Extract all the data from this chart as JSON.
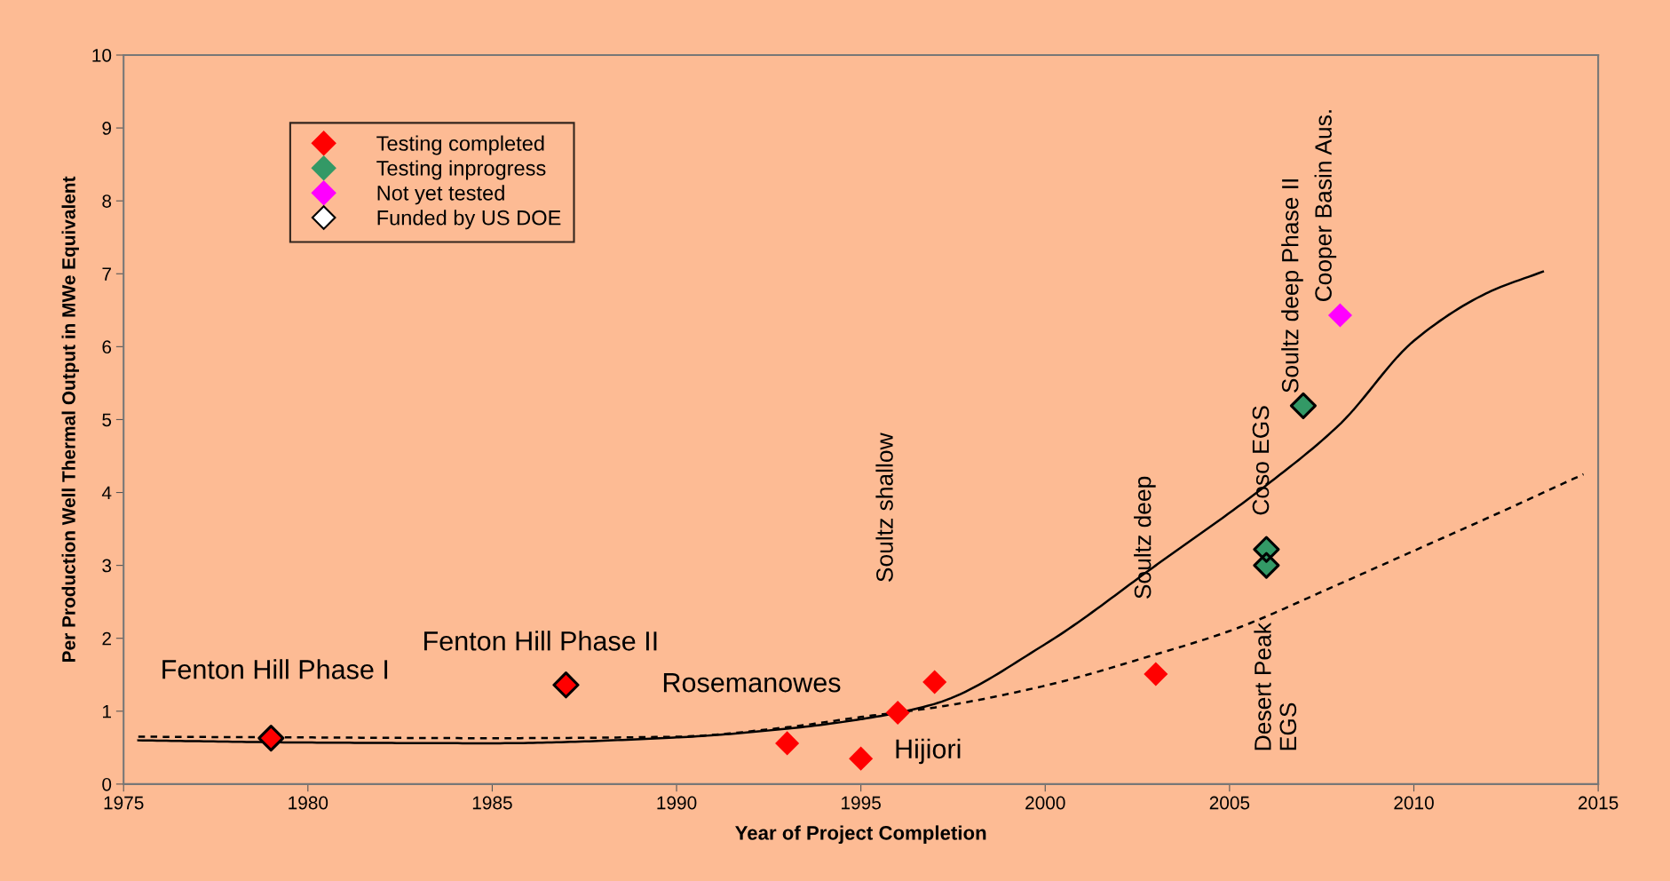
{
  "chart_data": {
    "type": "scatter",
    "xlabel": "Year of Project Completion",
    "ylabel": "Per Production Well Thermal Output in MWe Equivalent",
    "xlim": [
      1975,
      2015
    ],
    "xticks": [
      1975,
      1980,
      1985,
      1990,
      1995,
      2000,
      2005,
      2010,
      2015
    ],
    "ylim": [
      0,
      10
    ],
    "yticks": [
      0,
      1,
      2,
      3,
      4,
      5,
      6,
      7,
      8,
      9,
      10
    ],
    "grid": false,
    "legend": "top left",
    "series": [
      {
        "name": "Testing completed",
        "color": "#ff0000",
        "marker": "diamond",
        "x": [
          1979,
          1987,
          1993,
          1995,
          1996,
          1997,
          2003
        ],
        "values": [
          0.63,
          1.36,
          0.56,
          0.35,
          0.98,
          1.4,
          1.51
        ]
      },
      {
        "name": "Testing inprogress",
        "color": "#339966",
        "marker": "diamond",
        "x": [
          2006,
          2006,
          2007
        ],
        "values": [
          3.22,
          3.0,
          5.19
        ]
      },
      {
        "name": "Not yet tested",
        "color": "#ff00ff",
        "marker": "diamond",
        "x": [
          2008
        ],
        "values": [
          6.43
        ]
      },
      {
        "name": "Funded by US DOE",
        "color": "#000000",
        "marker": "diamond",
        "x": [
          1979,
          1987,
          2006,
          2006,
          2007
        ],
        "values": [
          0.63,
          1.36,
          3.22,
          3.0,
          5.19
        ]
      },
      {
        "type": "line",
        "line_style": "solid",
        "color": "#000000",
        "x": [
          1975.4,
          1980,
          1985,
          1990,
          1993,
          1995,
          1997,
          2000,
          2003,
          2006,
          2008,
          2010,
          2012,
          2013.5
        ],
        "values": [
          0.6,
          0.57,
          0.56,
          0.64,
          0.76,
          0.89,
          1.1,
          1.92,
          3.0,
          4.1,
          4.94,
          6.08,
          6.74,
          7.03
        ]
      },
      {
        "type": "line",
        "line_style": "dashed",
        "color": "#000000",
        "x": [
          1975.4,
          1980,
          1985,
          1990,
          1993,
          1995,
          1997,
          2000,
          2003,
          2005,
          2008,
          2010,
          2012,
          2014.6
        ],
        "values": [
          0.65,
          0.64,
          0.63,
          0.65,
          0.78,
          0.92,
          1.05,
          1.35,
          1.78,
          2.1,
          2.75,
          3.2,
          3.65,
          4.25
        ]
      }
    ],
    "annotations": [
      "Fenton Hill Phase I",
      "Fenton Hill Phase II",
      "Rosemanowes",
      "Hijiori",
      "Soultz shallow",
      "Soultz deep",
      "Coso EGS",
      "Desert Peak\nEGS",
      "Soultz deep Phase II",
      "Cooper Basin Aus."
    ]
  }
}
